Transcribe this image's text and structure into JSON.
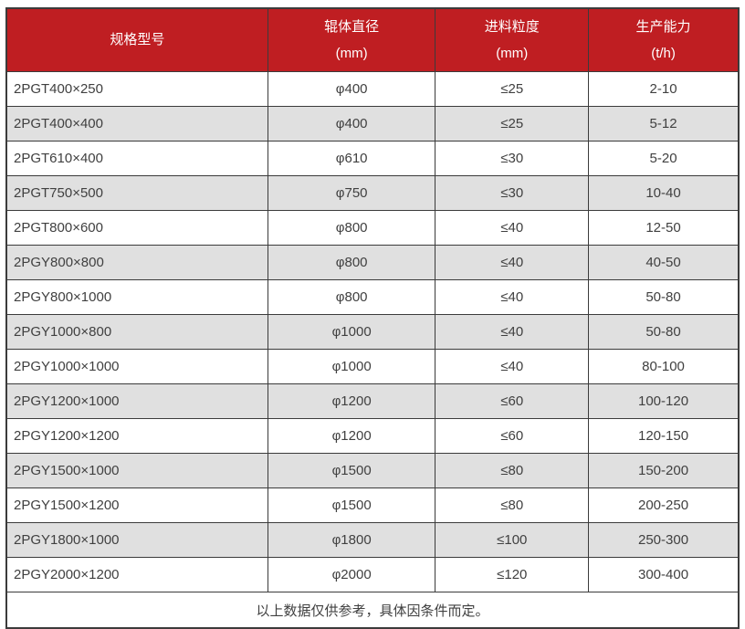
{
  "table": {
    "columns": [
      {
        "label": "规格型号",
        "unit": ""
      },
      {
        "label": "辊体直径",
        "unit": "(mm)"
      },
      {
        "label": "进料粒度",
        "unit": "(mm)"
      },
      {
        "label": "生产能力",
        "unit": "(t/h)"
      }
    ],
    "rows": [
      [
        "2PGT400×250",
        "φ400",
        "≤25",
        "2-10"
      ],
      [
        "2PGT400×400",
        "φ400",
        "≤25",
        "5-12"
      ],
      [
        "2PGT610×400",
        "φ610",
        "≤30",
        "5-20"
      ],
      [
        "2PGT750×500",
        "φ750",
        "≤30",
        "10-40"
      ],
      [
        "2PGT800×600",
        "φ800",
        "≤40",
        "12-50"
      ],
      [
        "2PGY800×800",
        "φ800",
        "≤40",
        "40-50"
      ],
      [
        "2PGY800×1000",
        "φ800",
        "≤40",
        "50-80"
      ],
      [
        "2PGY1000×800",
        "φ1000",
        "≤40",
        "50-80"
      ],
      [
        "2PGY1000×1000",
        "φ1000",
        "≤40",
        "80-100"
      ],
      [
        "2PGY1200×1000",
        "φ1200",
        "≤60",
        "100-120"
      ],
      [
        "2PGY1200×1200",
        "φ1200",
        "≤60",
        "120-150"
      ],
      [
        "2PGY1500×1000",
        "φ1500",
        "≤80",
        "150-200"
      ],
      [
        "2PGY1500×1200",
        "φ1500",
        "≤80",
        "200-250"
      ],
      [
        "2PGY1800×1000",
        "φ1800",
        "≤100",
        "250-300"
      ],
      [
        "2PGY2000×1200",
        "φ2000",
        "≤120",
        "300-400"
      ]
    ],
    "footnote": "以上数据仅供参考，具体因条件而定。"
  },
  "colors": {
    "header_bg": "#bf1e22",
    "header_text": "#ffffff",
    "row_alt_bg": "#e0e0e0",
    "border": "#3b3b3b",
    "cell_text": "#404040"
  }
}
